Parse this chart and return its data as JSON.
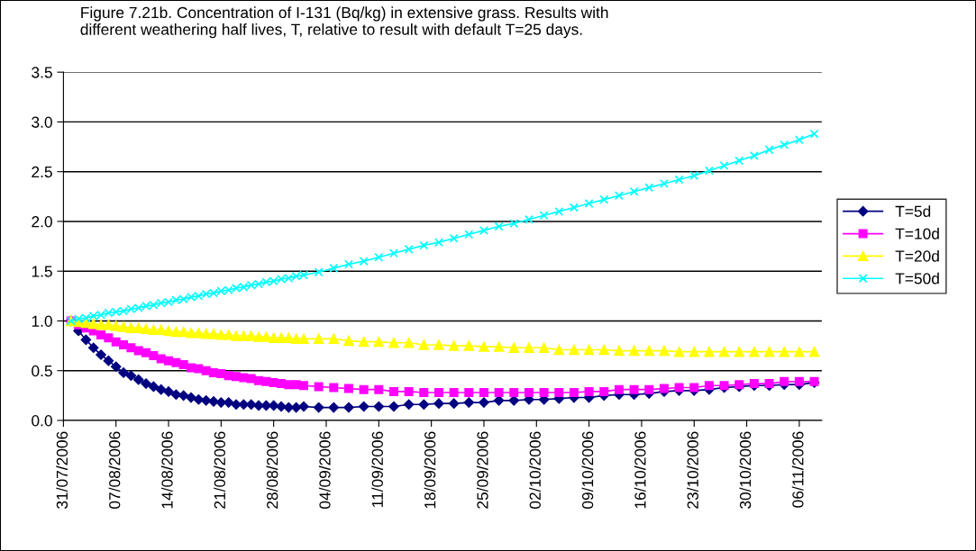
{
  "chart_data": {
    "type": "line",
    "title": "Figure 7.21b. Concentration of I-131 (Bq/kg) in extensive grass. Results with\ndifferent weathering half lives, T, relative to result with default T=25 days.",
    "x": [
      "2006-08-01",
      "2006-08-02",
      "2006-08-03",
      "2006-08-04",
      "2006-08-05",
      "2006-08-06",
      "2006-08-07",
      "2006-08-08",
      "2006-08-09",
      "2006-08-10",
      "2006-08-11",
      "2006-08-12",
      "2006-08-13",
      "2006-08-14",
      "2006-08-15",
      "2006-08-16",
      "2006-08-17",
      "2006-08-18",
      "2006-08-19",
      "2006-08-20",
      "2006-08-21",
      "2006-08-22",
      "2006-08-23",
      "2006-08-24",
      "2006-08-25",
      "2006-08-26",
      "2006-08-27",
      "2006-08-28",
      "2006-08-29",
      "2006-08-30",
      "2006-08-31",
      "2006-09-01",
      "2006-09-03",
      "2006-09-05",
      "2006-09-07",
      "2006-09-09",
      "2006-09-11",
      "2006-09-13",
      "2006-09-15",
      "2006-09-17",
      "2006-09-19",
      "2006-09-21",
      "2006-09-23",
      "2006-09-25",
      "2006-09-27",
      "2006-09-29",
      "2006-10-01",
      "2006-10-03",
      "2006-10-05",
      "2006-10-07",
      "2006-10-09",
      "2006-10-11",
      "2006-10-13",
      "2006-10-15",
      "2006-10-17",
      "2006-10-19",
      "2006-10-21",
      "2006-10-23",
      "2006-10-25",
      "2006-10-27",
      "2006-10-29",
      "2006-10-31",
      "2006-11-02",
      "2006-11-04",
      "2006-11-06",
      "2006-11-08"
    ],
    "xlim": [
      "2006-07-31",
      "2006-11-09"
    ],
    "xticks": [
      {
        "value": "2006-07-31",
        "label": "31/07/2006"
      },
      {
        "value": "2006-08-07",
        "label": "07/08/2006"
      },
      {
        "value": "2006-08-14",
        "label": "14/08/2006"
      },
      {
        "value": "2006-08-21",
        "label": "21/08/2006"
      },
      {
        "value": "2006-08-28",
        "label": "28/08/2006"
      },
      {
        "value": "2006-09-04",
        "label": "04/09/2006"
      },
      {
        "value": "2006-09-11",
        "label": "11/09/2006"
      },
      {
        "value": "2006-09-18",
        "label": "18/09/2006"
      },
      {
        "value": "2006-09-25",
        "label": "25/09/2006"
      },
      {
        "value": "2006-10-02",
        "label": "02/10/2006"
      },
      {
        "value": "2006-10-09",
        "label": "09/10/2006"
      },
      {
        "value": "2006-10-16",
        "label": "16/10/2006"
      },
      {
        "value": "2006-10-23",
        "label": "23/10/2006"
      },
      {
        "value": "2006-10-30",
        "label": "30/10/2006"
      },
      {
        "value": "2006-11-06",
        "label": "06/11/2006"
      }
    ],
    "ylim": [
      0,
      3.5
    ],
    "yticks": [
      {
        "value": 0,
        "label": "0.0"
      },
      {
        "value": 0.5,
        "label": "0.5"
      },
      {
        "value": 1,
        "label": "1.0"
      },
      {
        "value": 1.5,
        "label": "1.5"
      },
      {
        "value": 2,
        "label": "2.0"
      },
      {
        "value": 2.5,
        "label": "2.5"
      },
      {
        "value": 3,
        "label": "3.0"
      },
      {
        "value": 3.5,
        "label": "3.5"
      }
    ],
    "grid": "y",
    "legend": "right",
    "series": [
      {
        "name": "T=5d",
        "color": "#000080",
        "marker": "diamond",
        "values": [
          1.0,
          0.9,
          0.81,
          0.73,
          0.66,
          0.6,
          0.54,
          0.48,
          0.45,
          0.41,
          0.37,
          0.34,
          0.31,
          0.29,
          0.26,
          0.25,
          0.23,
          0.21,
          0.2,
          0.19,
          0.18,
          0.18,
          0.16,
          0.16,
          0.16,
          0.15,
          0.15,
          0.15,
          0.14,
          0.13,
          0.13,
          0.14,
          0.13,
          0.13,
          0.13,
          0.14,
          0.14,
          0.14,
          0.16,
          0.16,
          0.17,
          0.17,
          0.18,
          0.18,
          0.2,
          0.2,
          0.21,
          0.21,
          0.22,
          0.23,
          0.23,
          0.25,
          0.26,
          0.26,
          0.27,
          0.29,
          0.3,
          0.3,
          0.31,
          0.33,
          0.34,
          0.35,
          0.35,
          0.36,
          0.36,
          0.38
        ]
      },
      {
        "name": "T=10d",
        "color": "#ff00ff",
        "marker": "square",
        "values": [
          1.0,
          0.96,
          0.93,
          0.9,
          0.86,
          0.83,
          0.79,
          0.76,
          0.73,
          0.7,
          0.68,
          0.65,
          0.62,
          0.6,
          0.58,
          0.56,
          0.53,
          0.52,
          0.5,
          0.48,
          0.47,
          0.45,
          0.44,
          0.43,
          0.42,
          0.4,
          0.39,
          0.38,
          0.37,
          0.36,
          0.36,
          0.35,
          0.34,
          0.33,
          0.32,
          0.31,
          0.31,
          0.29,
          0.29,
          0.28,
          0.28,
          0.28,
          0.28,
          0.28,
          0.28,
          0.28,
          0.28,
          0.28,
          0.28,
          0.28,
          0.29,
          0.29,
          0.31,
          0.31,
          0.31,
          0.32,
          0.33,
          0.33,
          0.35,
          0.35,
          0.36,
          0.37,
          0.37,
          0.39,
          0.39,
          0.39
        ]
      },
      {
        "name": "T=20d",
        "color": "#ffff00",
        "marker": "triangle",
        "values": [
          1.0,
          0.99,
          0.98,
          0.97,
          0.96,
          0.96,
          0.95,
          0.94,
          0.93,
          0.93,
          0.92,
          0.91,
          0.91,
          0.9,
          0.89,
          0.89,
          0.88,
          0.88,
          0.87,
          0.87,
          0.86,
          0.86,
          0.85,
          0.85,
          0.85,
          0.84,
          0.84,
          0.83,
          0.83,
          0.83,
          0.82,
          0.82,
          0.82,
          0.82,
          0.8,
          0.79,
          0.79,
          0.78,
          0.78,
          0.76,
          0.76,
          0.75,
          0.75,
          0.74,
          0.74,
          0.73,
          0.73,
          0.73,
          0.71,
          0.71,
          0.71,
          0.71,
          0.7,
          0.7,
          0.7,
          0.7,
          0.69,
          0.69,
          0.69,
          0.69,
          0.69,
          0.69,
          0.69,
          0.69,
          0.69,
          0.69
        ]
      },
      {
        "name": "T=50d",
        "color": "#00ffff",
        "marker": "cross",
        "values": [
          1.0,
          1.02,
          1.03,
          1.05,
          1.06,
          1.08,
          1.09,
          1.1,
          1.12,
          1.13,
          1.15,
          1.16,
          1.18,
          1.19,
          1.21,
          1.22,
          1.24,
          1.25,
          1.27,
          1.28,
          1.3,
          1.31,
          1.33,
          1.34,
          1.36,
          1.37,
          1.39,
          1.4,
          1.42,
          1.43,
          1.45,
          1.46,
          1.49,
          1.53,
          1.57,
          1.6,
          1.64,
          1.68,
          1.72,
          1.76,
          1.79,
          1.83,
          1.87,
          1.91,
          1.95,
          1.98,
          2.02,
          2.06,
          2.1,
          2.14,
          2.18,
          2.22,
          2.26,
          2.3,
          2.34,
          2.38,
          2.42,
          2.46,
          2.51,
          2.56,
          2.61,
          2.66,
          2.72,
          2.77,
          2.82,
          2.88
        ]
      }
    ]
  }
}
